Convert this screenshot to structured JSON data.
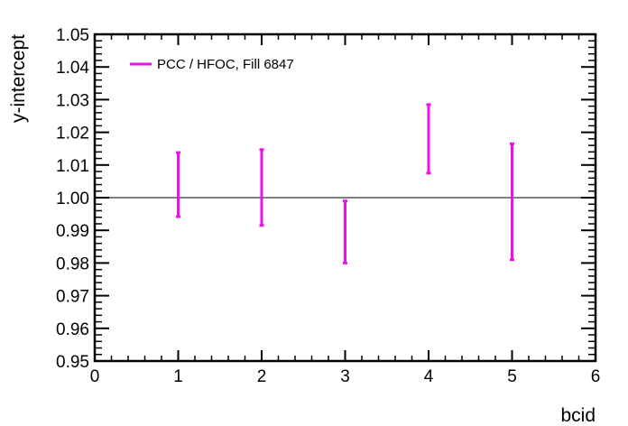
{
  "chart_data": {
    "type": "scatter",
    "title": "",
    "xlabel": "bcid",
    "ylabel": "y-intercept",
    "xlim": [
      0,
      6
    ],
    "ylim": [
      0.95,
      1.05
    ],
    "x_ticks": [
      "0",
      "1",
      "2",
      "3",
      "4",
      "5",
      "6"
    ],
    "y_ticks": [
      "0.95",
      "0.96",
      "0.97",
      "0.98",
      "0.99",
      "1.00",
      "1.01",
      "1.02",
      "1.03",
      "1.04",
      "1.05"
    ],
    "reference_line": 1.0,
    "grid": false,
    "legend_position": "top-left",
    "series": [
      {
        "name": "PCC / HFOC,  Fill 6847",
        "color": "#ee11ee",
        "points": [
          {
            "x": 1,
            "y": 1.004,
            "y_low": 0.9942,
            "y_high": 1.0138
          },
          {
            "x": 2,
            "y": 1.0031,
            "y_low": 0.9915,
            "y_high": 1.0147
          },
          {
            "x": 3,
            "y": 0.9895,
            "y_low": 0.98,
            "y_high": 0.999
          },
          {
            "x": 4,
            "y": 1.018,
            "y_low": 1.0075,
            "y_high": 1.0285
          },
          {
            "x": 5,
            "y": 0.9988,
            "y_low": 0.981,
            "y_high": 1.0165
          }
        ]
      }
    ]
  }
}
